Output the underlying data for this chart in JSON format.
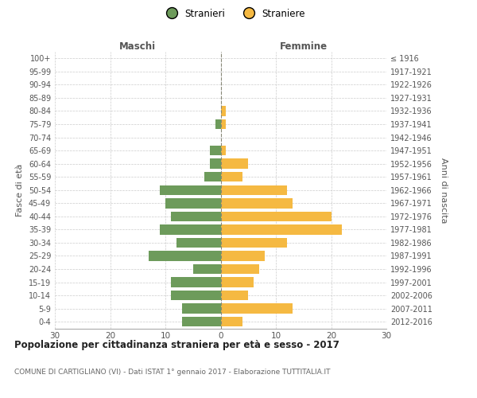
{
  "age_groups": [
    "0-4",
    "5-9",
    "10-14",
    "15-19",
    "20-24",
    "25-29",
    "30-34",
    "35-39",
    "40-44",
    "45-49",
    "50-54",
    "55-59",
    "60-64",
    "65-69",
    "70-74",
    "75-79",
    "80-84",
    "85-89",
    "90-94",
    "95-99",
    "100+"
  ],
  "birth_years": [
    "2012-2016",
    "2007-2011",
    "2002-2006",
    "1997-2001",
    "1992-1996",
    "1987-1991",
    "1982-1986",
    "1977-1981",
    "1972-1976",
    "1967-1971",
    "1962-1966",
    "1957-1961",
    "1952-1956",
    "1947-1951",
    "1942-1946",
    "1937-1941",
    "1932-1936",
    "1927-1931",
    "1922-1926",
    "1917-1921",
    "≤ 1916"
  ],
  "maschi": [
    7,
    7,
    9,
    9,
    5,
    13,
    8,
    11,
    9,
    10,
    11,
    3,
    2,
    2,
    0,
    1,
    0,
    0,
    0,
    0,
    0
  ],
  "femmine": [
    4,
    13,
    5,
    6,
    7,
    8,
    12,
    22,
    20,
    13,
    12,
    4,
    5,
    1,
    0,
    1,
    1,
    0,
    0,
    0,
    0
  ],
  "color_maschi": "#6d9b5b",
  "color_femmine": "#f5b942",
  "title": "Popolazione per cittadinanza straniera per età e sesso - 2017",
  "subtitle": "COMUNE DI CARTIGLIANO (VI) - Dati ISTAT 1° gennaio 2017 - Elaborazione TUTTITALIA.IT",
  "label_maschi": "Maschi",
  "label_femmine": "Femmine",
  "legend_stranieri": "Stranieri",
  "legend_straniere": "Straniere",
  "ylabel_left": "Fasce di età",
  "ylabel_right": "Anni di nascita",
  "xlim": 30,
  "background_color": "#ffffff",
  "grid_color": "#cccccc"
}
